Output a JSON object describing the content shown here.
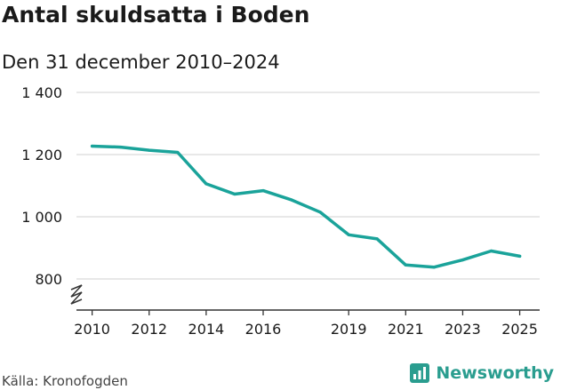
{
  "title": "Antal skuldsatta i Boden",
  "subtitle": "Den 31 december 2010–2024",
  "source": "Källa: Kronofogden",
  "brand": {
    "name": "Newsworthy",
    "icon": "newsworthy-logo-icon",
    "color": "#2a9d8f"
  },
  "colors": {
    "line": "#1aa39a",
    "grid": "#d9d9d9",
    "axis": "#333333"
  },
  "chart_data": {
    "type": "line",
    "title": "Antal skuldsatta i Boden",
    "subtitle": "Den 31 december 2010–2024",
    "xlabel": "",
    "ylabel": "",
    "x": [
      2010,
      2011,
      2012,
      2013,
      2014,
      2015,
      2016,
      2017,
      2018,
      2019,
      2020,
      2021,
      2022,
      2023,
      2024,
      2025
    ],
    "series": [
      {
        "values": [
          1227,
          1224,
          1214,
          1207,
          1106,
          1073,
          1084,
          1054,
          1015,
          942,
          929,
          845,
          838,
          861,
          890,
          873
        ]
      }
    ],
    "xticks": [
      "2010",
      "2012",
      "2014",
      "2016",
      "2019",
      "2021",
      "2023",
      "2025"
    ],
    "yticks": [
      "800",
      "1 000",
      "1 200",
      "1 400"
    ],
    "ylim": [
      700,
      1400
    ],
    "y_axis_break": true,
    "grid": true,
    "legend": "none"
  }
}
